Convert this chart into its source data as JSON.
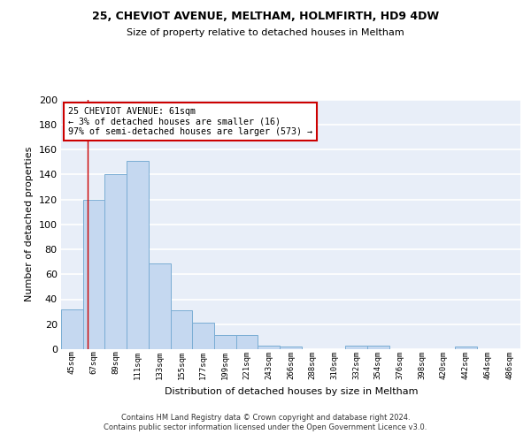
{
  "title1": "25, CHEVIOT AVENUE, MELTHAM, HOLMFIRTH, HD9 4DW",
  "title2": "Size of property relative to detached houses in Meltham",
  "xlabel": "Distribution of detached houses by size in Meltham",
  "ylabel": "Number of detached properties",
  "categories": [
    "45sqm",
    "67sqm",
    "89sqm",
    "111sqm",
    "133sqm",
    "155sqm",
    "177sqm",
    "199sqm",
    "221sqm",
    "243sqm",
    "266sqm",
    "288sqm",
    "310sqm",
    "332sqm",
    "354sqm",
    "376sqm",
    "398sqm",
    "420sqm",
    "442sqm",
    "464sqm",
    "486sqm"
  ],
  "values": [
    32,
    120,
    140,
    151,
    69,
    31,
    21,
    11,
    11,
    3,
    2,
    0,
    0,
    3,
    3,
    0,
    0,
    0,
    2,
    0,
    0
  ],
  "bar_color": "#c5d8f0",
  "bar_edge_color": "#7aadd4",
  "background_color": "#e8eef8",
  "grid_color": "#ffffff",
  "annotation_line1": "25 CHEVIOT AVENUE: 61sqm",
  "annotation_line2": "← 3% of detached houses are smaller (16)",
  "annotation_line3": "97% of semi-detached houses are larger (573) →",
  "ylim": [
    0,
    200
  ],
  "yticks": [
    0,
    20,
    40,
    60,
    80,
    100,
    120,
    140,
    160,
    180,
    200
  ],
  "footer_text": "Contains HM Land Registry data © Crown copyright and database right 2024.\nContains public sector information licensed under the Open Government Licence v3.0.",
  "red_line_xindex": 0.72
}
